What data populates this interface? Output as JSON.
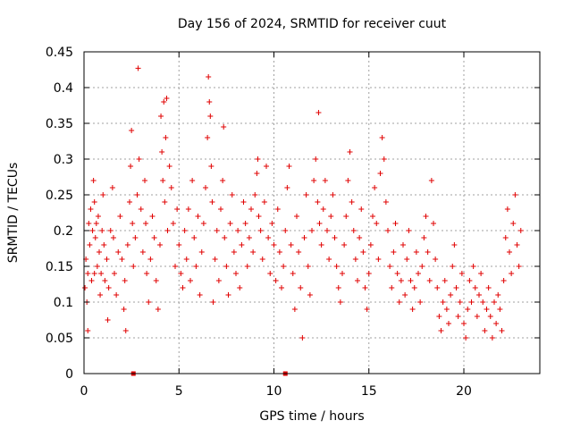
{
  "chart_data": {
    "type": "scatter",
    "title": "Day 156 of 2024, SRMTID for receiver cuut",
    "xlabel": "GPS time / hours",
    "ylabel": "SRMTID / TECUs",
    "xlim": [
      0,
      24
    ],
    "ylim": [
      0,
      0.45
    ],
    "xticks": [
      0,
      5,
      10,
      15,
      20
    ],
    "xtick_labels": [
      "0",
      "5",
      "10",
      "15",
      "20"
    ],
    "yticks": [
      0,
      0.05,
      0.1,
      0.15,
      0.2,
      0.25,
      0.3,
      0.35,
      0.4,
      0.45
    ],
    "ytick_labels": [
      "0",
      "0.05",
      "0.1",
      "0.15",
      "0.2",
      "0.25",
      "0.3",
      "0.35",
      "0.4",
      "0.45"
    ],
    "grid": true,
    "marker": "+",
    "color": "#e00000",
    "series": [
      {
        "name": "SRMTID",
        "points": [
          [
            0.05,
            0.12
          ],
          [
            0.1,
            0.16
          ],
          [
            0.15,
            0.1
          ],
          [
            0.2,
            0.14
          ],
          [
            0.25,
            0.21
          ],
          [
            0.3,
            0.18
          ],
          [
            0.35,
            0.23
          ],
          [
            0.4,
            0.13
          ],
          [
            0.45,
            0.2
          ],
          [
            0.5,
            0.27
          ],
          [
            0.55,
            0.24
          ],
          [
            0.6,
            0.19
          ],
          [
            0.7,
            0.15
          ],
          [
            0.75,
            0.22
          ],
          [
            0.8,
            0.17
          ],
          [
            0.85,
            0.11
          ],
          [
            0.9,
            0.14
          ],
          [
            0.95,
            0.2
          ],
          [
            1.0,
            0.25
          ],
          [
            1.05,
            0.18
          ],
          [
            0.2,
            0.06
          ],
          [
            0.55,
            0.14
          ],
          [
            0.65,
            0.21
          ],
          [
            1.1,
            0.13
          ],
          [
            1.2,
            0.16
          ],
          [
            1.25,
            0.075
          ],
          [
            1.3,
            0.12
          ],
          [
            1.4,
            0.2
          ],
          [
            1.5,
            0.26
          ],
          [
            1.55,
            0.19
          ],
          [
            1.6,
            0.14
          ],
          [
            1.7,
            0.11
          ],
          [
            1.8,
            0.17
          ],
          [
            1.9,
            0.22
          ],
          [
            2.0,
            0.16
          ],
          [
            2.1,
            0.09
          ],
          [
            2.15,
            0.13
          ],
          [
            2.2,
            0.06
          ],
          [
            2.3,
            0.18
          ],
          [
            2.4,
            0.24
          ],
          [
            2.45,
            0.29
          ],
          [
            2.5,
            0.34
          ],
          [
            2.55,
            0.21
          ],
          [
            2.6,
            0.15
          ],
          [
            2.7,
            0.19
          ],
          [
            2.8,
            0.25
          ],
          [
            2.85,
            0.427
          ],
          [
            2.9,
            0.3
          ],
          [
            3.0,
            0.23
          ],
          [
            3.1,
            0.17
          ],
          [
            3.2,
            0.27
          ],
          [
            3.25,
            0.21
          ],
          [
            3.3,
            0.14
          ],
          [
            3.4,
            0.1
          ],
          [
            3.5,
            0.16
          ],
          [
            3.6,
            0.22
          ],
          [
            3.7,
            0.19
          ],
          [
            3.8,
            0.13
          ],
          [
            3.9,
            0.09
          ],
          [
            4.0,
            0.18
          ],
          [
            4.05,
            0.36
          ],
          [
            4.1,
            0.31
          ],
          [
            4.15,
            0.27
          ],
          [
            4.2,
            0.38
          ],
          [
            4.25,
            0.24
          ],
          [
            4.3,
            0.33
          ],
          [
            4.35,
            0.385
          ],
          [
            4.4,
            0.2
          ],
          [
            4.5,
            0.29
          ],
          [
            4.6,
            0.26
          ],
          [
            4.7,
            0.21
          ],
          [
            4.8,
            0.15
          ],
          [
            4.9,
            0.23
          ],
          [
            5.0,
            0.18
          ],
          [
            5.1,
            0.14
          ],
          [
            5.2,
            0.12
          ],
          [
            5.3,
            0.2
          ],
          [
            5.4,
            0.16
          ],
          [
            5.5,
            0.23
          ],
          [
            5.6,
            0.13
          ],
          [
            5.7,
            0.27
          ],
          [
            5.8,
            0.19
          ],
          [
            5.9,
            0.15
          ],
          [
            6.0,
            0.22
          ],
          [
            6.1,
            0.11
          ],
          [
            6.2,
            0.17
          ],
          [
            6.3,
            0.21
          ],
          [
            6.4,
            0.26
          ],
          [
            6.5,
            0.33
          ],
          [
            6.55,
            0.415
          ],
          [
            6.6,
            0.38
          ],
          [
            6.65,
            0.36
          ],
          [
            6.7,
            0.29
          ],
          [
            6.75,
            0.24
          ],
          [
            6.8,
            0.1
          ],
          [
            6.9,
            0.16
          ],
          [
            7.0,
            0.2
          ],
          [
            7.1,
            0.13
          ],
          [
            7.2,
            0.23
          ],
          [
            7.3,
            0.27
          ],
          [
            7.35,
            0.345
          ],
          [
            7.4,
            0.19
          ],
          [
            7.5,
            0.15
          ],
          [
            7.6,
            0.11
          ],
          [
            7.7,
            0.21
          ],
          [
            7.8,
            0.25
          ],
          [
            7.9,
            0.17
          ],
          [
            8.0,
            0.14
          ],
          [
            8.1,
            0.2
          ],
          [
            8.2,
            0.12
          ],
          [
            8.3,
            0.18
          ],
          [
            8.4,
            0.24
          ],
          [
            8.5,
            0.21
          ],
          [
            8.6,
            0.15
          ],
          [
            8.7,
            0.19
          ],
          [
            8.8,
            0.23
          ],
          [
            8.9,
            0.17
          ],
          [
            9.0,
            0.25
          ],
          [
            9.1,
            0.28
          ],
          [
            9.15,
            0.3
          ],
          [
            9.2,
            0.22
          ],
          [
            9.3,
            0.2
          ],
          [
            9.4,
            0.16
          ],
          [
            9.5,
            0.24
          ],
          [
            9.6,
            0.29
          ],
          [
            9.7,
            0.19
          ],
          [
            9.8,
            0.14
          ],
          [
            9.9,
            0.21
          ],
          [
            10.0,
            0.18
          ],
          [
            10.1,
            0.13
          ],
          [
            10.2,
            0.23
          ],
          [
            10.3,
            0.17
          ],
          [
            10.4,
            0.12
          ],
          [
            10.5,
            0.15
          ],
          [
            10.6,
            0.2
          ],
          [
            10.7,
            0.26
          ],
          [
            10.8,
            0.29
          ],
          [
            10.9,
            0.18
          ],
          [
            11.0,
            0.14
          ],
          [
            11.1,
            0.09
          ],
          [
            11.2,
            0.22
          ],
          [
            11.3,
            0.17
          ],
          [
            11.4,
            0.12
          ],
          [
            11.5,
            0.05
          ],
          [
            11.6,
            0.19
          ],
          [
            11.7,
            0.25
          ],
          [
            11.8,
            0.15
          ],
          [
            11.9,
            0.11
          ],
          [
            12.0,
            0.2
          ],
          [
            12.1,
            0.27
          ],
          [
            12.2,
            0.3
          ],
          [
            12.3,
            0.24
          ],
          [
            12.35,
            0.365
          ],
          [
            12.4,
            0.21
          ],
          [
            12.5,
            0.18
          ],
          [
            12.6,
            0.23
          ],
          [
            12.7,
            0.27
          ],
          [
            12.8,
            0.2
          ],
          [
            12.9,
            0.16
          ],
          [
            13.0,
            0.22
          ],
          [
            13.1,
            0.25
          ],
          [
            13.2,
            0.19
          ],
          [
            13.3,
            0.15
          ],
          [
            13.4,
            0.12
          ],
          [
            13.5,
            0.1
          ],
          [
            13.6,
            0.14
          ],
          [
            13.7,
            0.18
          ],
          [
            13.8,
            0.22
          ],
          [
            13.9,
            0.27
          ],
          [
            14.0,
            0.31
          ],
          [
            14.1,
            0.24
          ],
          [
            14.2,
            0.2
          ],
          [
            14.3,
            0.16
          ],
          [
            14.4,
            0.13
          ],
          [
            14.5,
            0.19
          ],
          [
            14.6,
            0.23
          ],
          [
            14.7,
            0.17
          ],
          [
            14.8,
            0.12
          ],
          [
            14.9,
            0.09
          ],
          [
            15.0,
            0.14
          ],
          [
            15.1,
            0.18
          ],
          [
            15.2,
            0.22
          ],
          [
            15.3,
            0.26
          ],
          [
            15.4,
            0.21
          ],
          [
            15.5,
            0.16
          ],
          [
            15.6,
            0.28
          ],
          [
            15.7,
            0.33
          ],
          [
            15.8,
            0.3
          ],
          [
            15.9,
            0.24
          ],
          [
            16.0,
            0.2
          ],
          [
            16.1,
            0.15
          ],
          [
            16.2,
            0.12
          ],
          [
            16.3,
            0.17
          ],
          [
            16.4,
            0.21
          ],
          [
            16.5,
            0.14
          ],
          [
            16.6,
            0.1
          ],
          [
            16.7,
            0.13
          ],
          [
            16.8,
            0.18
          ],
          [
            16.9,
            0.11
          ],
          [
            17.0,
            0.16
          ],
          [
            17.1,
            0.2
          ],
          [
            17.2,
            0.13
          ],
          [
            17.3,
            0.09
          ],
          [
            17.4,
            0.12
          ],
          [
            17.5,
            0.17
          ],
          [
            17.6,
            0.14
          ],
          [
            17.7,
            0.1
          ],
          [
            17.8,
            0.15
          ],
          [
            17.9,
            0.19
          ],
          [
            18.0,
            0.22
          ],
          [
            18.1,
            0.17
          ],
          [
            18.2,
            0.13
          ],
          [
            18.3,
            0.27
          ],
          [
            18.4,
            0.21
          ],
          [
            18.5,
            0.16
          ],
          [
            18.6,
            0.12
          ],
          [
            18.7,
            0.08
          ],
          [
            18.8,
            0.06
          ],
          [
            18.9,
            0.1
          ],
          [
            19.0,
            0.13
          ],
          [
            19.1,
            0.09
          ],
          [
            19.2,
            0.07
          ],
          [
            19.3,
            0.11
          ],
          [
            19.4,
            0.15
          ],
          [
            19.5,
            0.18
          ],
          [
            19.6,
            0.12
          ],
          [
            19.7,
            0.08
          ],
          [
            19.8,
            0.1
          ],
          [
            19.9,
            0.14
          ],
          [
            20.0,
            0.07
          ],
          [
            20.1,
            0.05
          ],
          [
            20.2,
            0.09
          ],
          [
            20.3,
            0.13
          ],
          [
            20.4,
            0.1
          ],
          [
            20.5,
            0.15
          ],
          [
            20.6,
            0.12
          ],
          [
            20.7,
            0.08
          ],
          [
            20.8,
            0.11
          ],
          [
            20.9,
            0.14
          ],
          [
            21.0,
            0.1
          ],
          [
            21.1,
            0.06
          ],
          [
            21.2,
            0.09
          ],
          [
            21.3,
            0.12
          ],
          [
            21.4,
            0.08
          ],
          [
            21.5,
            0.05
          ],
          [
            21.6,
            0.1
          ],
          [
            21.7,
            0.07
          ],
          [
            21.8,
            0.11
          ],
          [
            21.9,
            0.09
          ],
          [
            22.0,
            0.06
          ],
          [
            22.1,
            0.13
          ],
          [
            22.2,
            0.19
          ],
          [
            22.3,
            0.23
          ],
          [
            22.4,
            0.17
          ],
          [
            22.5,
            0.14
          ],
          [
            22.6,
            0.21
          ],
          [
            22.7,
            0.25
          ],
          [
            22.8,
            0.18
          ],
          [
            22.9,
            0.15
          ],
          [
            23.0,
            0.2
          ]
        ]
      }
    ],
    "zero_markers": [
      2.6,
      10.6
    ]
  }
}
